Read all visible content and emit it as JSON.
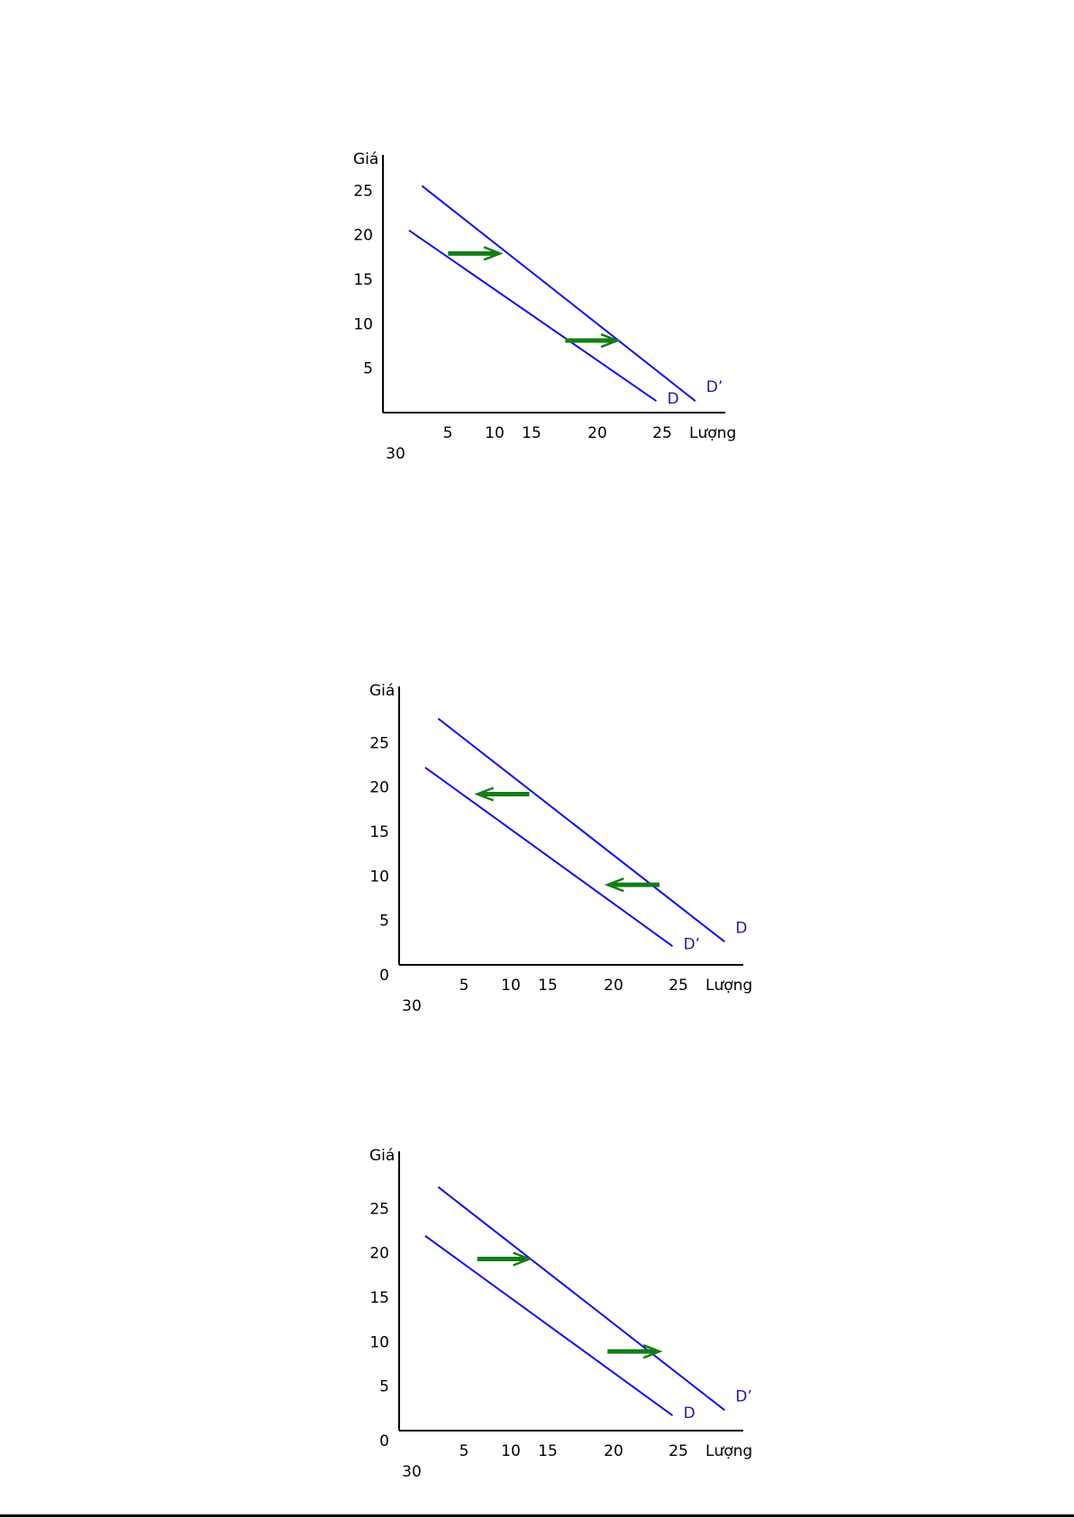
{
  "chart_data": [
    {
      "type": "line",
      "xlabel": "Lượng",
      "ylabel": "Giá",
      "x_ticks": [
        "5",
        "10",
        "15",
        "20",
        "25"
      ],
      "x_extra_tick": "30",
      "y_ticks": [
        "25",
        "20",
        "15",
        "10",
        "5"
      ],
      "origin_label": "",
      "series": [
        {
          "name": "D",
          "x": [
            2,
            21
          ],
          "y": [
            20.5,
            1.3
          ]
        },
        {
          "name": "D’",
          "x": [
            3,
            24
          ],
          "y": [
            25.5,
            1.3
          ]
        }
      ],
      "arrows": [
        {
          "direction": "right",
          "x": [
            5,
            9
          ],
          "y": 17.9
        },
        {
          "direction": "right",
          "x": [
            14,
            18
          ],
          "y": 8.1
        }
      ],
      "colors": {
        "curve": "#1010f0",
        "arrow": "#147d14",
        "label": "#1a1aa6"
      }
    },
    {
      "type": "line",
      "xlabel": "Lượng",
      "ylabel": "Giá",
      "x_ticks": [
        "5",
        "10",
        "15",
        "20",
        "25"
      ],
      "x_extra_tick": "30",
      "y_ticks": [
        "25",
        "20",
        "15",
        "10",
        "5"
      ],
      "origin_label": "0",
      "series": [
        {
          "name": "D’",
          "x": [
            2,
            21
          ],
          "y": [
            22.2,
            2.1
          ]
        },
        {
          "name": "D",
          "x": [
            3,
            25
          ],
          "y": [
            27.7,
            2.6
          ]
        }
      ],
      "arrows": [
        {
          "direction": "left",
          "x": [
            6,
            10
          ],
          "y": 19.2
        },
        {
          "direction": "left",
          "x": [
            16,
            20
          ],
          "y": 9.0
        }
      ],
      "colors": {
        "curve": "#1010f0",
        "arrow": "#147d14",
        "label": "#1a1aa6"
      }
    },
    {
      "type": "line",
      "xlabel": "Lượng",
      "ylabel": "Giá",
      "x_ticks": [
        "5",
        "10",
        "15",
        "20",
        "25"
      ],
      "x_extra_tick": "30",
      "y_ticks": [
        "25",
        "20",
        "15",
        "10",
        "5"
      ],
      "origin_label": "0",
      "series": [
        {
          "name": "D",
          "x": [
            2,
            21
          ],
          "y": [
            21.9,
            1.7
          ]
        },
        {
          "name": "D’",
          "x": [
            3,
            25
          ],
          "y": [
            27.4,
            2.3
          ]
        }
      ],
      "arrows": [
        {
          "direction": "right",
          "x": [
            6,
            10
          ],
          "y": 19.3
        },
        {
          "direction": "right",
          "x": [
            16,
            20
          ],
          "y": 8.9
        }
      ],
      "colors": {
        "curve": "#1010f0",
        "arrow": "#147d14",
        "label": "#1a1aa6"
      }
    }
  ]
}
